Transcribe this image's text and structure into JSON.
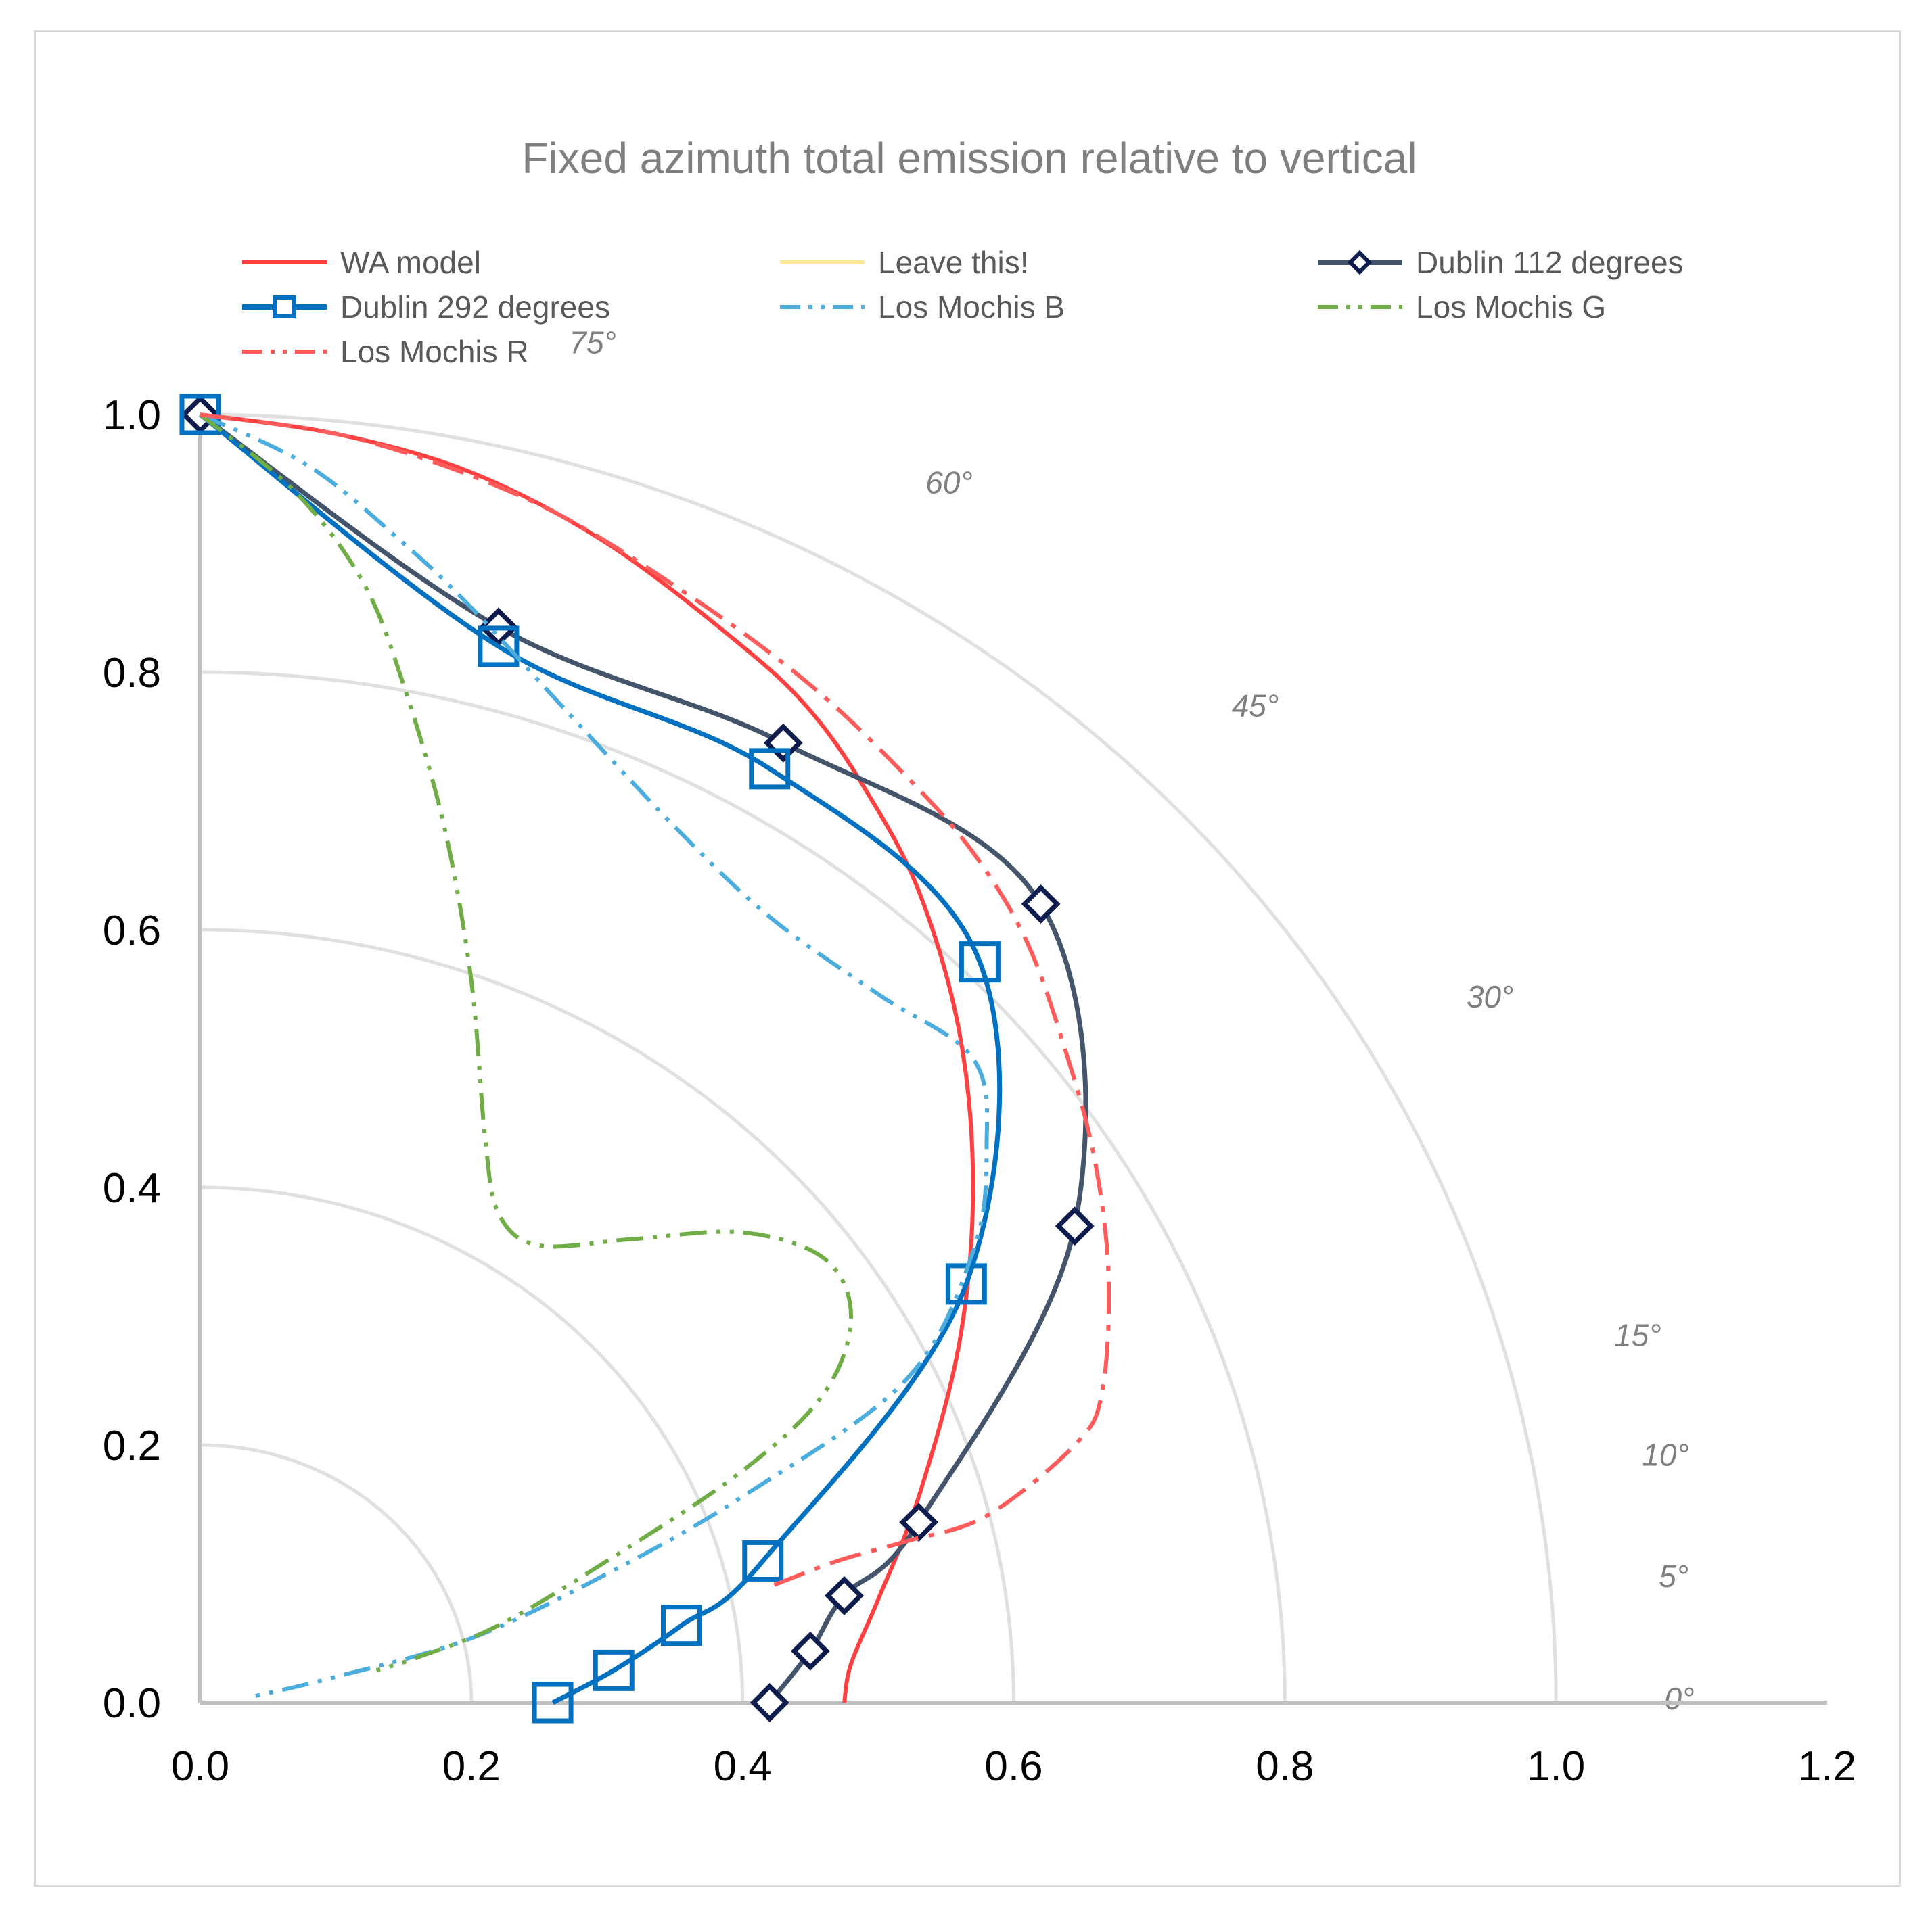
{
  "chart_data": {
    "type": "line",
    "title": "Fixed azimuth total emission relative to vertical",
    "xlabel": "",
    "ylabel": "",
    "xlim": [
      0,
      1.2
    ],
    "ylim": [
      0,
      1.0
    ],
    "x_ticks": [
      "0.0",
      "0.2",
      "0.4",
      "0.6",
      "0.8",
      "1.0",
      "1.2"
    ],
    "y_ticks": [
      "0.0",
      "0.2",
      "0.4",
      "0.6",
      "0.8",
      "1.0"
    ],
    "polar_grid": {
      "radii": [
        0.2,
        0.4,
        0.6,
        0.8,
        1.0
      ],
      "angle_labels": [
        {
          "label": "0°",
          "deg": 0
        },
        {
          "label": "5°",
          "deg": 5
        },
        {
          "label": "10°",
          "deg": 10
        },
        {
          "label": "15°",
          "deg": 15
        },
        {
          "label": "30°",
          "deg": 30
        },
        {
          "label": "45°",
          "deg": 45
        },
        {
          "label": "60°",
          "deg": 60
        },
        {
          "label": "75°",
          "deg": 75
        }
      ]
    },
    "legend_position": "top",
    "series": [
      {
        "name": "WA model",
        "color": "#ff4040",
        "style": "solid",
        "marker": "none",
        "points": [
          [
            0.0,
            1.0
          ],
          [
            0.1,
            0.985
          ],
          [
            0.2,
            0.955
          ],
          [
            0.3,
            0.9
          ],
          [
            0.4,
            0.82
          ],
          [
            0.45,
            0.77
          ],
          [
            0.49,
            0.71
          ],
          [
            0.53,
            0.63
          ],
          [
            0.56,
            0.52
          ],
          [
            0.57,
            0.4
          ],
          [
            0.56,
            0.28
          ],
          [
            0.53,
            0.16
          ],
          [
            0.5,
            0.08
          ],
          [
            0.48,
            0.03
          ],
          [
            0.475,
            0.0
          ]
        ]
      },
      {
        "name": "Leave this!",
        "color": "#ffe699",
        "style": "solid",
        "marker": "none",
        "points": []
      },
      {
        "name": "Dublin 112 degrees",
        "color": "#44546a",
        "markerColor": "#0d1b4d",
        "style": "solid",
        "marker": "diamond",
        "points": [
          [
            0.0,
            1.0
          ],
          [
            0.22,
            0.835
          ],
          [
            0.43,
            0.745
          ],
          [
            0.62,
            0.62
          ],
          [
            0.645,
            0.37
          ],
          [
            0.53,
            0.14
          ],
          [
            0.475,
            0.083
          ],
          [
            0.45,
            0.04
          ],
          [
            0.42,
            0.0
          ]
        ]
      },
      {
        "name": "Dublin 292 degrees",
        "color": "#0070c0",
        "style": "solid",
        "marker": "square",
        "points": [
          [
            0.0,
            1.0
          ],
          [
            0.22,
            0.82
          ],
          [
            0.42,
            0.725
          ],
          [
            0.575,
            0.575
          ],
          [
            0.565,
            0.325
          ],
          [
            0.415,
            0.11
          ],
          [
            0.355,
            0.06
          ],
          [
            0.305,
            0.025
          ],
          [
            0.26,
            0.0
          ]
        ]
      },
      {
        "name": "Los Mochis B",
        "color": "#4bacde",
        "style": "dashdotdot",
        "marker": "none",
        "points": [
          [
            0.0,
            1.0
          ],
          [
            0.08,
            0.96
          ],
          [
            0.15,
            0.9
          ],
          [
            0.2,
            0.85
          ],
          [
            0.27,
            0.77
          ],
          [
            0.35,
            0.68
          ],
          [
            0.42,
            0.61
          ],
          [
            0.5,
            0.55
          ],
          [
            0.57,
            0.5
          ],
          [
            0.58,
            0.43
          ],
          [
            0.57,
            0.35
          ],
          [
            0.52,
            0.25
          ],
          [
            0.4,
            0.16
          ],
          [
            0.3,
            0.1
          ],
          [
            0.2,
            0.05
          ],
          [
            0.1,
            0.02
          ],
          [
            0.04,
            0.005
          ]
        ]
      },
      {
        "name": "Los Mochis G",
        "color": "#70ad47",
        "style": "dashdotdot",
        "marker": "none",
        "points": [
          [
            0.0,
            1.0
          ],
          [
            0.07,
            0.94
          ],
          [
            0.12,
            0.87
          ],
          [
            0.15,
            0.79
          ],
          [
            0.18,
            0.68
          ],
          [
            0.2,
            0.56
          ],
          [
            0.21,
            0.44
          ],
          [
            0.22,
            0.38
          ],
          [
            0.25,
            0.355
          ],
          [
            0.32,
            0.36
          ],
          [
            0.4,
            0.365
          ],
          [
            0.46,
            0.345
          ],
          [
            0.48,
            0.3
          ],
          [
            0.46,
            0.24
          ],
          [
            0.4,
            0.18
          ],
          [
            0.3,
            0.11
          ],
          [
            0.22,
            0.06
          ],
          [
            0.16,
            0.035
          ],
          [
            0.13,
            0.025
          ]
        ]
      },
      {
        "name": "Los Mochis R",
        "color": "#ff5b5b",
        "style": "dashdot",
        "marker": "none",
        "points": [
          [
            0.0,
            1.0
          ],
          [
            0.12,
            0.98
          ],
          [
            0.25,
            0.93
          ],
          [
            0.36,
            0.86
          ],
          [
            0.45,
            0.79
          ],
          [
            0.52,
            0.72
          ],
          [
            0.57,
            0.66
          ],
          [
            0.61,
            0.59
          ],
          [
            0.64,
            0.5
          ],
          [
            0.66,
            0.42
          ],
          [
            0.67,
            0.33
          ],
          [
            0.665,
            0.24
          ],
          [
            0.645,
            0.2
          ],
          [
            0.58,
            0.145
          ],
          [
            0.52,
            0.125
          ],
          [
            0.47,
            0.11
          ],
          [
            0.42,
            0.09
          ]
        ]
      }
    ]
  }
}
